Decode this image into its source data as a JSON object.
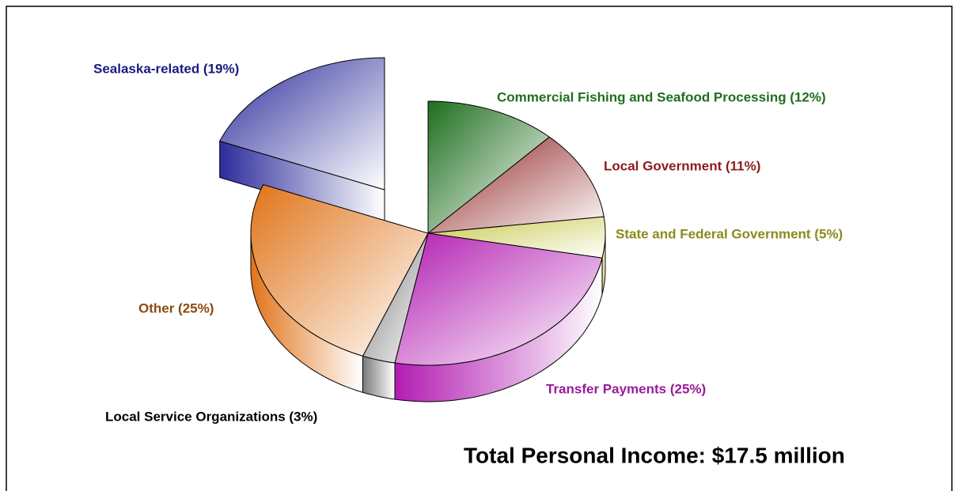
{
  "chart_data": {
    "type": "pie",
    "values": [
      12,
      11,
      5,
      25,
      3,
      25,
      19
    ],
    "value_labels": [
      "Commercial Fishing and Seafood Processing (12%)",
      "Local Government (11%)",
      "State and Federal Government (5%)",
      "Transfer Payments (25%)",
      "Local Service Organizations  (3%)",
      "Other (25%)",
      "Sealaska-related (19%)"
    ],
    "colors": [
      "#1e6e1e",
      "#8e2020",
      "#c8c84a",
      "#b21cb2",
      "#7a7a7a",
      "#e0741a",
      "#2c2c9c"
    ],
    "label_colors": [
      "#1e6e1e",
      "#8e1a1a",
      "#8a8a1a",
      "#9a1a9a",
      "#000000",
      "#8a4a10",
      "#1a1a80"
    ],
    "exploded": [
      6
    ],
    "annotation": "Total Personal Income:  $17.5 million"
  }
}
